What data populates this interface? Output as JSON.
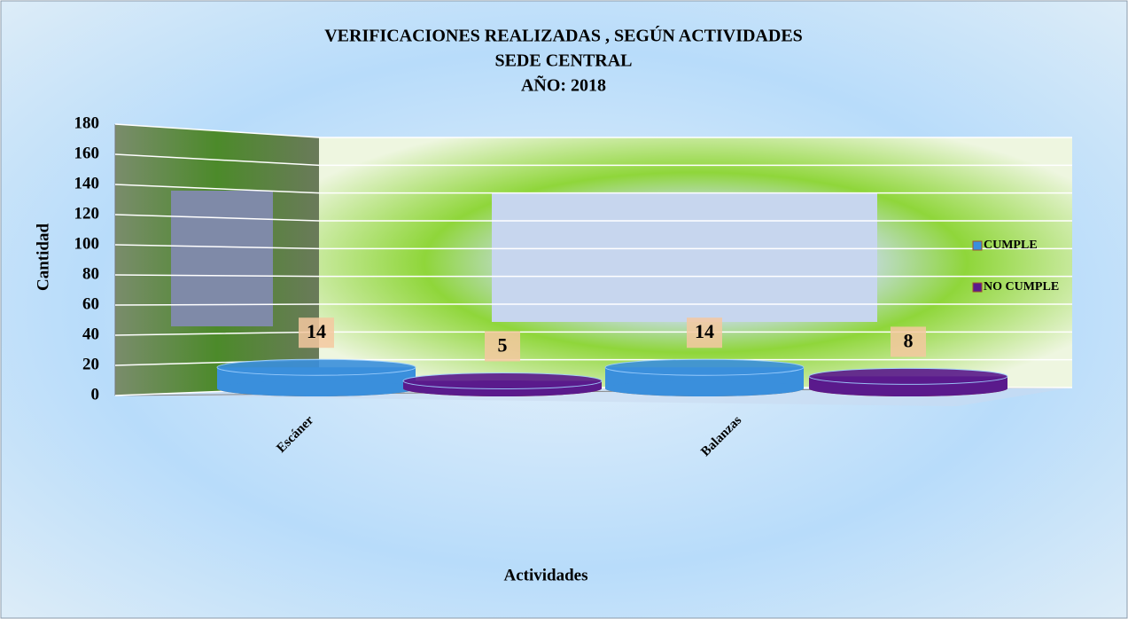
{
  "chart_data": {
    "type": "bar3d",
    "title": [
      "VERIFICACIONES REALIZADAS , SEGÚN ACTIVIDADES",
      "SEDE CENTRAL",
      "AÑO: 2018"
    ],
    "x_label": "Actividades",
    "y_label": "Cantidad",
    "categories": [
      "Escáner",
      "Balanzas"
    ],
    "series": [
      {
        "name": "CUMPLE",
        "color": "#3a8fdc",
        "values": [
          14,
          14
        ]
      },
      {
        "name": "NO CUMPLE",
        "color": "#5a1a8c",
        "values": [
          5,
          8
        ]
      }
    ],
    "ylim": [
      0,
      180
    ],
    "yticks": [
      0,
      20,
      40,
      60,
      80,
      100,
      120,
      140,
      160,
      180
    ],
    "grid": true,
    "legend": "right"
  }
}
